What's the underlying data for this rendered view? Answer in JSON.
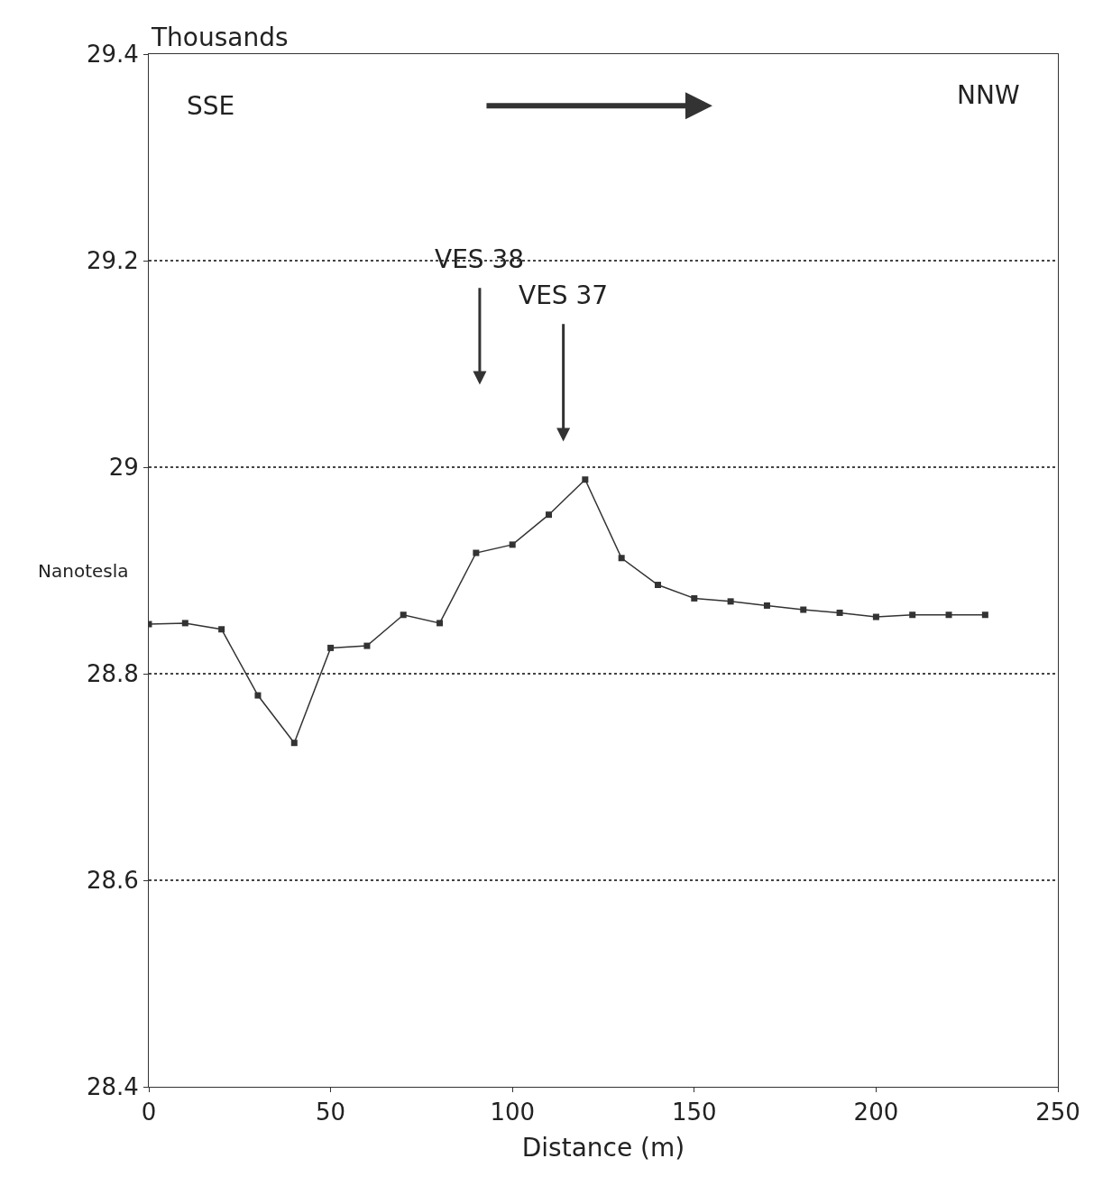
{
  "chart_data": {
    "type": "line",
    "xlabel": "Distance (m)",
    "ylabel": "Nanotesla",
    "x": [
      0,
      10,
      20,
      30,
      40,
      50,
      60,
      70,
      80,
      90,
      100,
      110,
      120,
      130,
      140,
      150,
      160,
      170,
      180,
      190,
      200,
      210,
      220,
      230
    ],
    "series": [
      {
        "color": "#333333",
        "values": [
          28.848,
          28.849,
          28.843,
          28.779,
          28.733,
          28.825,
          28.827,
          28.857,
          28.849,
          28.917,
          28.925,
          28.954,
          28.988,
          28.912,
          28.886,
          28.873,
          28.87,
          28.866,
          28.862,
          28.859,
          28.855,
          28.857,
          28.857,
          28.857
        ]
      }
    ],
    "xlim": [
      0,
      250
    ],
    "xticks": [
      0,
      50,
      100,
      150,
      200,
      250
    ],
    "ylim": [
      28.4,
      29.4
    ],
    "yticks": [
      28.4,
      28.6,
      28.8,
      29,
      29.2,
      29.4
    ],
    "grid": "y",
    "marker": "square",
    "line_style": "solid",
    "annotations": [
      "Thousands",
      "SSE",
      "NNW",
      "VES 38",
      "VES 37"
    ]
  }
}
